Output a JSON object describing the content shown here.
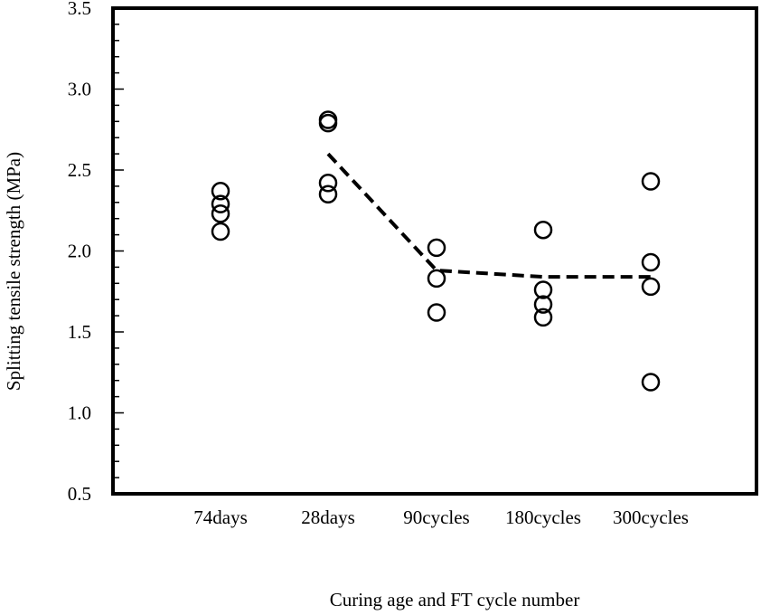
{
  "chart_data": {
    "type": "scatter",
    "title": "",
    "xlabel": "Curing age and FT cycle number",
    "ylabel": "Splitting tensile strength (MPa)",
    "categories": [
      "74days",
      "28days",
      "90cycles",
      "180cycles",
      "300cycles"
    ],
    "ylim": [
      0.5,
      3.5
    ],
    "yticks": [
      "0.5",
      "1.0",
      "1.5",
      "2.0",
      "2.5",
      "3.0",
      "3.5"
    ],
    "grid": false,
    "points": [
      {
        "category": "74days",
        "values": [
          2.37,
          2.29,
          2.23,
          2.12
        ]
      },
      {
        "category": "28days",
        "values": [
          2.81,
          2.79,
          2.42,
          2.35
        ]
      },
      {
        "category": "90cycles",
        "values": [
          2.02,
          1.83,
          1.62
        ]
      },
      {
        "category": "180cycles",
        "values": [
          2.13,
          1.76,
          1.67,
          1.59
        ]
      },
      {
        "category": "300cycles",
        "values": [
          2.43,
          1.93,
          1.78,
          1.19
        ]
      }
    ],
    "trend_line": {
      "style": "dashed",
      "categories": [
        "28days",
        "90cycles",
        "180cycles",
        "300cycles"
      ],
      "values": [
        2.6,
        1.88,
        1.84,
        1.84
      ]
    }
  }
}
